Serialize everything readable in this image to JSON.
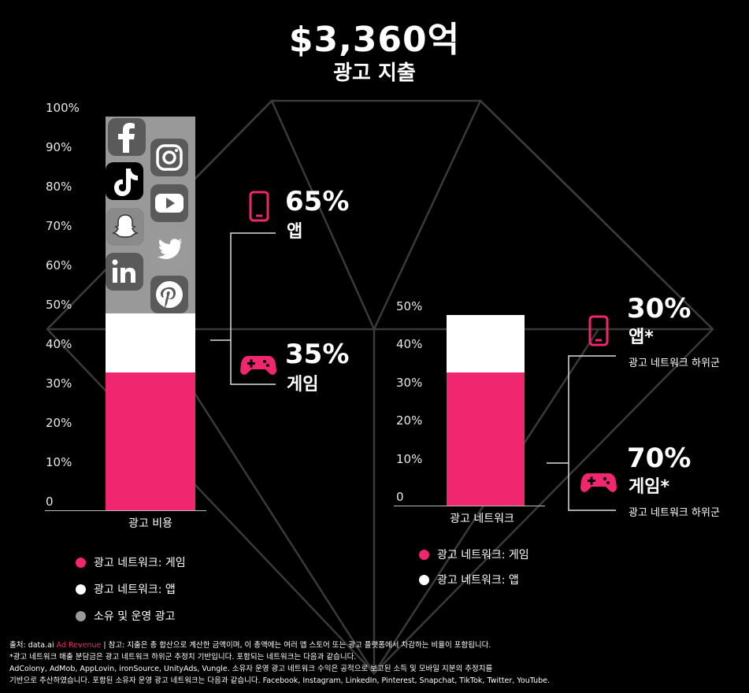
{
  "header": {
    "total": "$3,360억",
    "subtitle": "광고 지출"
  },
  "colors": {
    "game": "#f0266e",
    "app": "#ffffff",
    "owned": "#999999",
    "background": "#000000"
  },
  "chart_data": [
    {
      "type": "bar",
      "stacked": true,
      "categories": [
        "광고 비용"
      ],
      "ylim": [
        0,
        100
      ],
      "yticks": [
        "0",
        "10%",
        "20%",
        "30%",
        "40%",
        "50%",
        "60%",
        "70%",
        "80%",
        "90%",
        "100%"
      ],
      "series": [
        {
          "name": "광고 네트워크: 게임",
          "values": [
            35
          ]
        },
        {
          "name": "광고 네트워크: 앱",
          "values": [
            15
          ]
        },
        {
          "name": "소유 및 운영 광고",
          "values": [
            50
          ]
        }
      ],
      "annotations": [
        {
          "pct": "65%",
          "label": "앱",
          "icon": "phone-icon"
        },
        {
          "pct": "35%",
          "label": "게임",
          "icon": "gamepad-icon"
        }
      ],
      "owned_logos": [
        "facebook-icon",
        "instagram-icon",
        "tiktok-icon",
        "youtube-icon",
        "snapchat-icon",
        "twitter-icon",
        "linkedin-icon",
        "pinterest-icon"
      ]
    },
    {
      "type": "bar",
      "stacked": true,
      "categories": [
        "광고 네트워크"
      ],
      "ylim": [
        0,
        50
      ],
      "yticks": [
        "0",
        "10%",
        "20%",
        "30%",
        "40%",
        "50%"
      ],
      "series": [
        {
          "name": "광고 네트워크: 게임",
          "values": [
            35
          ]
        },
        {
          "name": "광고 네트워크: 앱",
          "values": [
            15
          ]
        }
      ],
      "annotations": [
        {
          "pct": "30%",
          "label": "앱*",
          "sub": "광고 네트워크 하위군",
          "icon": "phone-icon"
        },
        {
          "pct": "70%",
          "label": "게임*",
          "sub": "광고 네트워크 하위군",
          "icon": "gamepad-icon"
        }
      ]
    }
  ],
  "legend1": [
    {
      "label": "광고 네트워크: 게임",
      "color": "#f0266e"
    },
    {
      "label": "광고 네트워크: 앱",
      "color": "#ffffff"
    },
    {
      "label": "소유 및 운영 광고",
      "color": "#999999"
    }
  ],
  "legend2": [
    {
      "label": "광고 네트워크: 게임",
      "color": "#f0266e"
    },
    {
      "label": "광고 네트워크: 앱",
      "color": "#ffffff"
    }
  ],
  "footnote": {
    "source_prefix": "출처: data.ai",
    "source_red": " Ad Revenue",
    "line1_rest": " | 참고: 지출은 총 합산으로 계산한 금액이며, 이 총액에는 여러 앱 스토어 또는 광고 플랫폼에서 차감하는 비율이 포함됩니다.",
    "line2": "*광고 네트워크 매출 분담금은 광고 네트워크 하위군 추정치 기반입니다. 포함되는 네트워크는 다음과 같습니다.",
    "line3": "AdColony, AdMob, AppLovin, ironSource, UnityAds, Vungle. 소유자 운영 광고 네트워크 수익은 공적으로 보고된 소득 및 모바일 지분의 추정치를",
    "line4": "기반으로 추산하였습니다. 포함된 소유자 운영 광고 네트워크는 다음과 같습니다. Facebook, Instagram, LinkedIn, Pinterest, Snapchat, TikTok, Twitter, YouTube."
  }
}
